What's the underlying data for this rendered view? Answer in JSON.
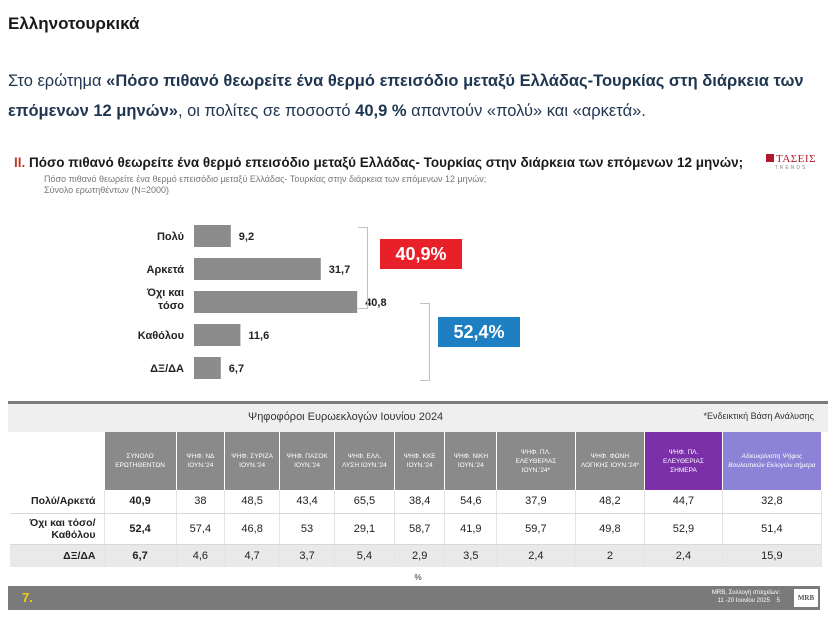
{
  "page_title": "Ελληνοτουρκικά",
  "intro": {
    "pre": "Στο ερώτημα ",
    "question": "«Πόσο πιθανό θεωρείτε ένα θερμό επεισόδιο μεταξύ Ελλάδας-Τουρκίας στη διάρκεια των επόμενων 12 μηνών»",
    "mid": ", οι πολίτες σε ποσοστό ",
    "pct": "40,9 %",
    "post": " απαντούν «πολύ» και «αρκετά»."
  },
  "slide": {
    "q_num": "II.",
    "q_title": "Πόσο πιθανό θεωρείτε ένα θερμό επεισόδιο μεταξύ Ελλάδας- Τουρκίας στην διάρκεια των επόμενων 12 μηνών;",
    "q_sub": "Πόσο πιθανό θεωρείτε ένα θερμό επεισόδιο μεταξύ Ελλάδας- Τουρκίας στην διάρκεια των επόμενων 12 μηνών;",
    "q_base": "Σύνολο ερωτηθέντων (Ν=2000)",
    "brand_main": "ΤΑΣΕΙΣ",
    "brand_sub": "TRENDS",
    "red_badge": "40,9%",
    "blue_badge": "52,4%"
  },
  "chart_data": {
    "type": "bar",
    "orientation": "horizontal",
    "categories": [
      "Πολύ",
      "Αρκετά",
      "Όχι και τόσο",
      "Καθόλου",
      "ΔΞ/ΔΑ"
    ],
    "values": [
      9.2,
      31.7,
      40.8,
      11.6,
      6.7
    ],
    "labels": [
      "9,2",
      "31,7",
      "40,8",
      "11,6",
      "6,7"
    ],
    "colors": {
      "bar": "#8c8c8c"
    }
  },
  "table": {
    "title": "Ψηφοφόροι Ευρωεκλογών Ιουνίου 2024",
    "note": "*Ενδεικτική Βάση Ανάλυσης",
    "columns": [
      "ΣΥΝΟΛΟ ΕΡΩΤΗΘΕΝΤΩΝ",
      "ΨΗΦ. ΝΔ ΙΟΥΝ.'24",
      "ΨΗΦ. ΣΥΡΙΖΑ ΙΟΥΝ.'24",
      "ΨΗΦ. ΠΑΣΟΚ ΙΟΥΝ.'24",
      "ΨΗΦ. ΕΛΛ. ΛΥΣΗ ΙΟΥΝ.'24",
      "ΨΗΦ. ΚΚΕ ΙΟΥΝ.'24",
      "ΨΗΦ. ΝΙΚΗ ΙΟΥΝ.'24",
      "ΨΗΦ. ΠΛ. ΕΛΕΥΘΕΡΙΑΣ ΙΟΥΝ.'24*",
      "ΨΗΦ. ΦΩΝΗ ΛΟΓΙΚΗΣ ΙΟΥΝ.'24*",
      "ΨΗΦ. ΠΛ. ΕΛΕΥΘΕΡΙΑΣ ΣΗΜΕΡΑ",
      "Αδιευκρίνιστη Ψήφος Βουλευτικών Εκλογών σήμερα"
    ],
    "rows": [
      {
        "label": "Πολύ/Αρκετά",
        "values": [
          "40,9",
          "38",
          "48,5",
          "43,4",
          "65,5",
          "38,4",
          "54,6",
          "37,9",
          "48,2",
          "44,7",
          "32,8"
        ]
      },
      {
        "label": "Όχι και τόσο/Καθόλου",
        "values": [
          "52,4",
          "57,4",
          "46,8",
          "53",
          "29,1",
          "58,7",
          "41,9",
          "59,7",
          "49,8",
          "52,9",
          "51,4"
        ]
      },
      {
        "label": "ΔΞ/ΔΑ",
        "values": [
          "6,7",
          "4,6",
          "4,7",
          "3,7",
          "5,4",
          "2,9",
          "3,5",
          "2,4",
          "2",
          "2,4",
          "15,9"
        ]
      }
    ],
    "unit": "%"
  },
  "footer": {
    "page": "7.",
    "source_line1": "MRB, Συλλογή στοιχείων:",
    "source_line2": "11 -20 Ιουνίου 2025",
    "slide_num": "5",
    "logo": "MRB"
  }
}
